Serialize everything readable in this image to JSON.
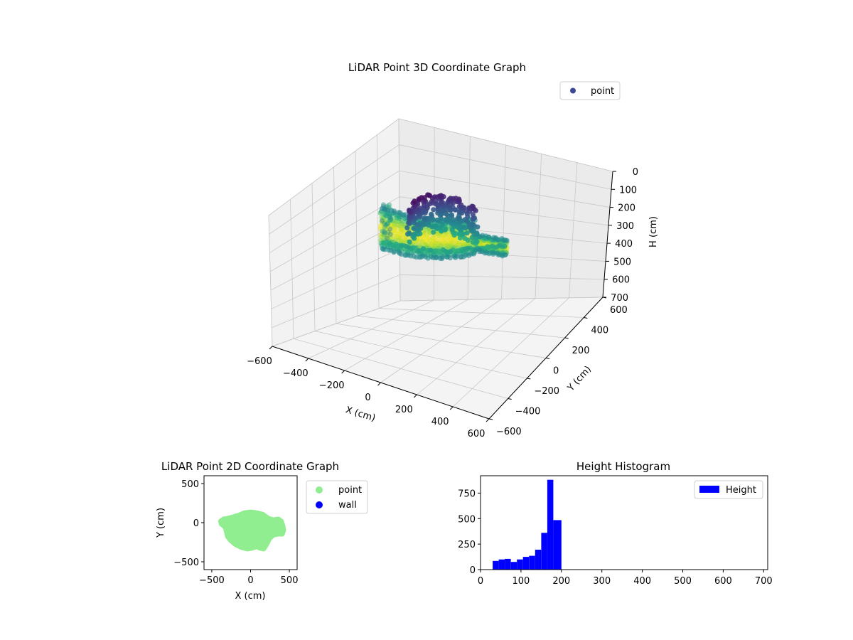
{
  "chart_data": [
    {
      "type": "scatter3d",
      "title": "LiDAR Point 3D Coordinate Graph",
      "xlabel": "X (cm)",
      "ylabel": "Y (cm)",
      "zlabel": "H (cm)",
      "xlim": [
        -600,
        600
      ],
      "ylim": [
        -600,
        600
      ],
      "zlim": [
        0,
        700
      ],
      "z_axis_inverted": true,
      "xticks": [
        "−600",
        "−400",
        "−200",
        "0",
        "200",
        "400",
        "600"
      ],
      "yticks": [
        "−600",
        "−400",
        "−200",
        "0",
        "200",
        "400",
        "600"
      ],
      "zticks": [
        "0",
        "100",
        "200",
        "300",
        "400",
        "500",
        "600",
        "700"
      ],
      "colormap": "viridis",
      "legend": {
        "entries": [
          "point"
        ],
        "placement": "top-right"
      },
      "series": [
        {
          "name": "point",
          "color": "#3b4994"
        }
      ],
      "grid": true
    },
    {
      "type": "scatter",
      "title": "LiDAR Point 2D Coordinate Graph",
      "xlabel": "X (cm)",
      "ylabel": "Y (cm)",
      "xlim": [
        -600,
        600
      ],
      "ylim": [
        -600,
        600
      ],
      "xticks": [
        "−500",
        "0",
        "500"
      ],
      "yticks": [
        "−500",
        "0",
        "500"
      ],
      "legend": {
        "placement": "outside-right"
      },
      "series": [
        {
          "name": "point",
          "color": "#90ee90",
          "outline": [
            [
              -380,
              -20
            ],
            [
              -330,
              -60
            ],
            [
              -300,
              -180
            ],
            [
              -260,
              -230
            ],
            [
              -200,
              -280
            ],
            [
              -120,
              -320
            ],
            [
              -40,
              -340
            ],
            [
              20,
              -330
            ],
            [
              80,
              -310
            ],
            [
              120,
              -330
            ],
            [
              170,
              -340
            ],
            [
              210,
              -280
            ],
            [
              250,
              -200
            ],
            [
              300,
              -160
            ],
            [
              360,
              -150
            ],
            [
              410,
              -150
            ],
            [
              430,
              -100
            ],
            [
              420,
              -40
            ],
            [
              400,
              20
            ],
            [
              360,
              50
            ],
            [
              290,
              40
            ],
            [
              230,
              60
            ],
            [
              160,
              110
            ],
            [
              80,
              130
            ],
            [
              0,
              140
            ],
            [
              -80,
              130
            ],
            [
              -150,
              100
            ],
            [
              -220,
              80
            ],
            [
              -290,
              60
            ],
            [
              -350,
              50
            ],
            [
              -390,
              20
            ]
          ]
        },
        {
          "name": "wall",
          "color": "#0000ff",
          "points": []
        }
      ],
      "grid": false
    },
    {
      "type": "histogram",
      "title": "Height Histogram",
      "xlim": [
        0,
        710
      ],
      "ylim": [
        0,
        920
      ],
      "xticks": [
        "0",
        "100",
        "200",
        "300",
        "400",
        "500",
        "600",
        "700"
      ],
      "yticks": [
        "0",
        "250",
        "500",
        "750"
      ],
      "legend": {
        "entries": [
          "Height"
        ],
        "placement": "top-right"
      },
      "series": [
        {
          "name": "Height",
          "color": "#0000ff"
        }
      ],
      "bins": [
        {
          "x0": 30,
          "x1": 45,
          "count": 85
        },
        {
          "x0": 45,
          "x1": 60,
          "count": 100
        },
        {
          "x0": 60,
          "x1": 75,
          "count": 105
        },
        {
          "x0": 75,
          "x1": 90,
          "count": 75
        },
        {
          "x0": 90,
          "x1": 105,
          "count": 100
        },
        {
          "x0": 105,
          "x1": 120,
          "count": 125
        },
        {
          "x0": 120,
          "x1": 135,
          "count": 135
        },
        {
          "x0": 135,
          "x1": 150,
          "count": 195
        },
        {
          "x0": 150,
          "x1": 165,
          "count": 360
        },
        {
          "x0": 165,
          "x1": 180,
          "count": 880
        },
        {
          "x0": 180,
          "x1": 200,
          "count": 485
        }
      ]
    }
  ]
}
